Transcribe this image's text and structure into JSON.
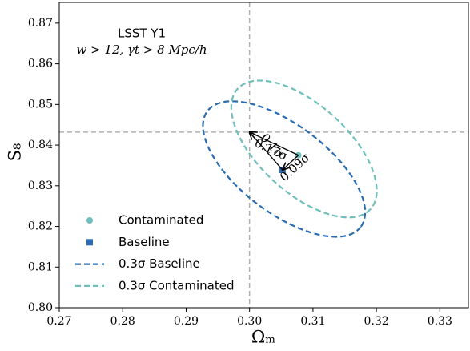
{
  "chart_data": {
    "type": "scatter",
    "title": "LSST Y1",
    "subtitle": "w > 12, γt > 8 Mpc/h",
    "x_label": "Ωₘ",
    "y_label": "S₈",
    "xlim": [
      0.27,
      0.3345
    ],
    "ylim": [
      0.8,
      0.8751
    ],
    "xticks": [
      0.27,
      0.28,
      0.29,
      {
        "value": 0.3,
        "label": "0.30"
      },
      0.31,
      0.32,
      0.33
    ],
    "yticks": [
      {
        "value": 0.8,
        "label": "0.80"
      },
      0.81,
      0.82,
      0.83,
      0.84,
      0.85,
      0.86,
      0.87
    ],
    "reference_lines": {
      "x": 0.3,
      "y": 0.8432,
      "color": "#b0b0b0"
    },
    "series": [
      {
        "name": "Contaminated",
        "kind": "point",
        "marker": "circle",
        "color": "#6fc0bb",
        "x": [
          0.3077
        ],
        "y": [
          0.8375
        ]
      },
      {
        "name": "Baseline",
        "kind": "point",
        "marker": "square",
        "color": "#2b6cb0",
        "x": [
          0.3052
        ],
        "y": [
          0.8339
        ]
      },
      {
        "name": "0.3σ Baseline",
        "kind": "contour",
        "color": "#2b6cb0",
        "x": [
          0.31753,
          0.31501,
          0.31104,
          0.30622,
          0.30127,
          0.29696,
          0.29394,
          0.29267,
          0.29335,
          0.29587,
          0.29984,
          0.30466,
          0.30961,
          0.31392,
          0.31694,
          0.31821
        ],
        "y": [
          0.81987,
          0.81763,
          0.81792,
          0.82067,
          0.82546,
          0.83157,
          0.83808,
          0.84397,
          0.84837,
          0.85061,
          0.85032,
          0.84757,
          0.84278,
          0.83667,
          0.83016,
          0.82427
        ]
      },
      {
        "name": "0.3σ Contaminated",
        "kind": "contour",
        "color": "#6fc0bb",
        "x": [
          0.31908,
          0.3165,
          0.31273,
          0.30832,
          0.30395,
          0.30028,
          0.29789,
          0.29712,
          0.2981,
          0.30068,
          0.30445,
          0.30886,
          0.31323,
          0.3169,
          0.31929,
          0.32006
        ],
        "y": [
          0.82427,
          0.8223,
          0.82289,
          0.82593,
          0.83098,
          0.83725,
          0.84379,
          0.84962,
          0.85383,
          0.8558,
          0.85521,
          0.85217,
          0.84712,
          0.84085,
          0.83431,
          0.82848
        ]
      }
    ],
    "annotations": [
      {
        "text": "0.17σ",
        "x": [
          0.3077,
          0.3
        ],
        "y": [
          0.8375,
          0.8432
        ]
      },
      {
        "text": "0.1σ",
        "x": [
          0.3052,
          0.3
        ],
        "y": [
          0.8339,
          0.8432
        ]
      },
      {
        "text": "0.09σ",
        "x": [
          0.3077,
          0.3052
        ],
        "y": [
          0.8375,
          0.8339
        ]
      }
    ],
    "legend": "lower left"
  }
}
